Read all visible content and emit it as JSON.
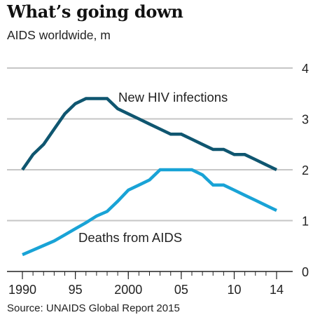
{
  "title": "What’s going down",
  "subtitle": "AIDS worldwide, m",
  "source": "Source: UNAIDS Global Report 2015",
  "chart_data": {
    "type": "line",
    "x": [
      1990,
      1991,
      1992,
      1993,
      1994,
      1995,
      1996,
      1997,
      1998,
      1999,
      2000,
      2001,
      2002,
      2003,
      2004,
      2005,
      2006,
      2007,
      2008,
      2009,
      2010,
      2011,
      2012,
      2013,
      2014
    ],
    "xticks": [
      1990,
      1995,
      2000,
      2005,
      2010,
      2014
    ],
    "xtick_labels": [
      "1990",
      "95",
      "2000",
      "05",
      "10",
      "14"
    ],
    "yticks": [
      0,
      1,
      2,
      3,
      4
    ],
    "ylim": [
      0,
      4
    ],
    "xlim": [
      1990,
      2014
    ],
    "grid": true,
    "series": [
      {
        "name": "New HIV infections",
        "color": "#0f5670",
        "values": [
          2.0,
          2.3,
          2.5,
          2.8,
          3.1,
          3.3,
          3.4,
          3.4,
          3.4,
          3.2,
          3.1,
          3.0,
          2.9,
          2.8,
          2.7,
          2.7,
          2.6,
          2.5,
          2.4,
          2.4,
          2.3,
          2.3,
          2.2,
          2.1,
          2.0
        ]
      },
      {
        "name": "Deaths from AIDS",
        "color": "#19a3d6",
        "values": [
          0.33,
          0.42,
          0.51,
          0.6,
          0.72,
          0.84,
          0.96,
          1.09,
          1.18,
          1.38,
          1.6,
          1.7,
          1.8,
          2.0,
          2.0,
          2.0,
          2.0,
          1.9,
          1.7,
          1.7,
          1.6,
          1.5,
          1.4,
          1.3,
          1.2
        ]
      }
    ],
    "colors": {
      "grid": "#c6c6c6",
      "axis": "#222222"
    }
  }
}
